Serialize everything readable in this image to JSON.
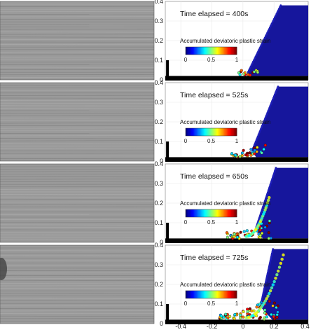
{
  "chart_data": {
    "type": "scatter",
    "panels": [
      {
        "title": "Time elapsed = 400s",
        "failure_extent": 0.0
      },
      {
        "title": "Time elapsed = 525s",
        "failure_extent": 0.35
      },
      {
        "title": "Time elapsed = 650s",
        "failure_extent": 0.62
      },
      {
        "title": "Time elapsed = 725s",
        "failure_extent": 1.0
      }
    ],
    "colorbar": {
      "label": "Accumulated deviatoric plastic strain",
      "ticks": [
        "0",
        "0.5",
        "1"
      ],
      "range": [
        0,
        1
      ],
      "colormap": "jet"
    },
    "y_ticks": [
      "0.4",
      "0.3",
      "0.2",
      "0.1",
      "0"
    ],
    "x_ticks": [
      "-0.4",
      "-0.2",
      "0",
      "0.2",
      "0.4"
    ],
    "xlim": [
      -0.5,
      0.42
    ],
    "ylim": [
      0,
      0.4
    ],
    "grid": true,
    "grid_color": "#e8e8e8",
    "particle_color": "#16169c",
    "wall_color": "#000000"
  },
  "photos": {
    "background": "#9a9a9a",
    "dark": "#6e6e6e",
    "light": "#b8b8b8"
  }
}
